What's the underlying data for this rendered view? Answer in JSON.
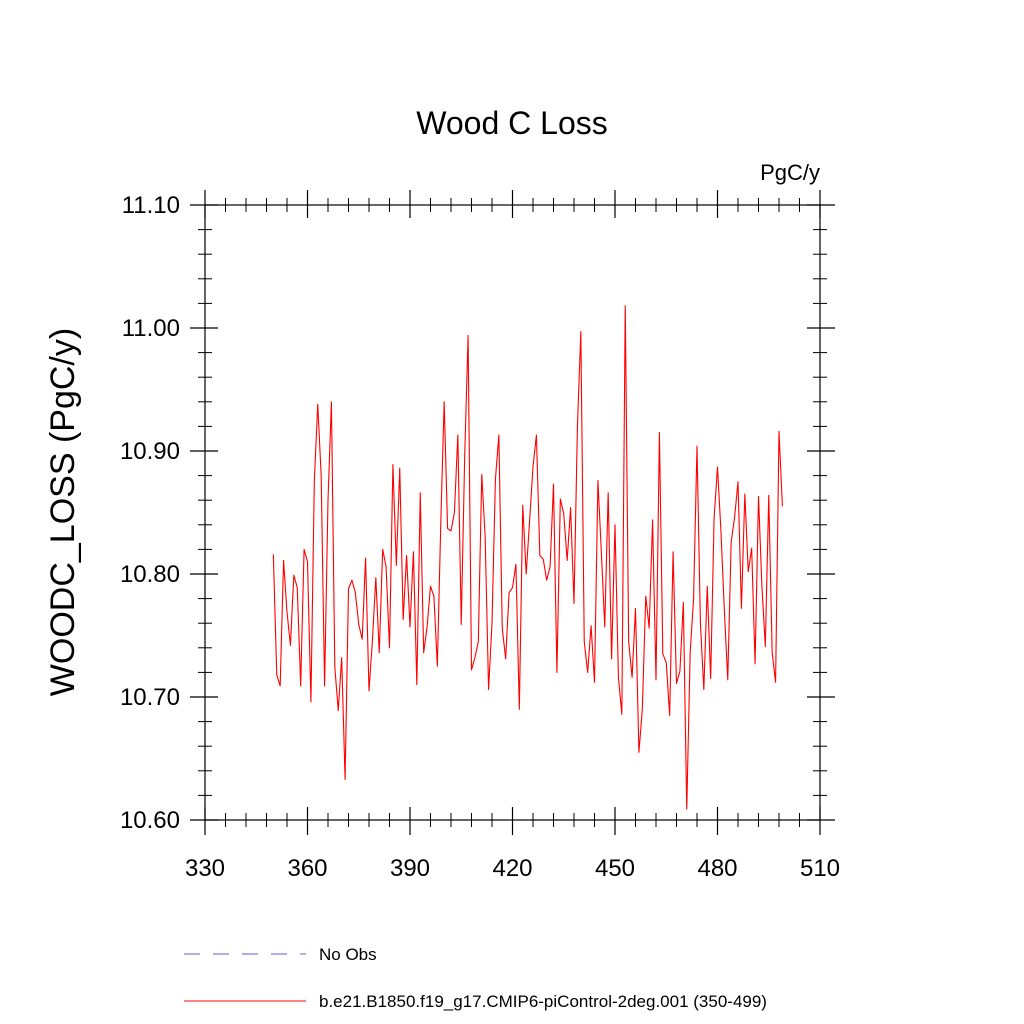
{
  "chart_data": {
    "type": "line",
    "title": "Wood C Loss",
    "units_label": "PgC/y",
    "xlabel": "",
    "ylabel": "WOODC_LOSS  (PgC/y)",
    "xlim": [
      330,
      510
    ],
    "ylim": [
      10.6,
      11.1
    ],
    "x_ticks": [
      330,
      360,
      390,
      420,
      450,
      480,
      510
    ],
    "y_ticks": [
      10.6,
      10.7,
      10.8,
      10.9,
      11.0,
      11.1
    ],
    "x_tick_labels": [
      "330",
      "360",
      "390",
      "420",
      "450",
      "480",
      "510"
    ],
    "y_tick_labels": [
      "10.60",
      "10.70",
      "10.80",
      "10.90",
      "11.00",
      "11.10"
    ],
    "grid": false,
    "legend_position": "bottom",
    "series": [
      {
        "name": "No Obs",
        "color": "#6a5acd",
        "style": "dashed",
        "x": [],
        "values": []
      },
      {
        "name": "b.e21.B1850.f19_g17.CMIP6-piControl-2deg.001 (350-499)",
        "color": "#ff0000",
        "style": "solid",
        "x_start": 350,
        "x_step": 1,
        "values": [
          10.816,
          10.718,
          10.709,
          10.811,
          10.769,
          10.742,
          10.799,
          10.789,
          10.709,
          10.82,
          10.81,
          10.696,
          10.876,
          10.938,
          10.88,
          10.709,
          10.86,
          10.94,
          10.724,
          10.689,
          10.732,
          10.633,
          10.788,
          10.795,
          10.785,
          10.759,
          10.747,
          10.813,
          10.705,
          10.746,
          10.797,
          10.736,
          10.82,
          10.806,
          10.74,
          10.889,
          10.807,
          10.886,
          10.763,
          10.815,
          10.757,
          10.818,
          10.71,
          10.866,
          10.736,
          10.757,
          10.79,
          10.782,
          10.725,
          10.84,
          10.94,
          10.837,
          10.835,
          10.85,
          10.913,
          10.759,
          10.895,
          10.994,
          10.722,
          10.732,
          10.745,
          10.881,
          10.83,
          10.706,
          10.76,
          10.877,
          10.913,
          10.756,
          10.731,
          10.785,
          10.789,
          10.808,
          10.69,
          10.856,
          10.8,
          10.843,
          10.887,
          10.913,
          10.815,
          10.812,
          10.795,
          10.806,
          10.873,
          10.72,
          10.861,
          10.849,
          10.811,
          10.854,
          10.776,
          10.92,
          10.997,
          10.745,
          10.72,
          10.758,
          10.712,
          10.876,
          10.818,
          10.757,
          10.866,
          10.731,
          10.84,
          10.716,
          10.686,
          11.018,
          10.745,
          10.716,
          10.772,
          10.655,
          10.69,
          10.782,
          10.756,
          10.844,
          10.714,
          10.915,
          10.735,
          10.728,
          10.685,
          10.818,
          10.711,
          10.721,
          10.777,
          10.609,
          10.736,
          10.78,
          10.904,
          10.76,
          10.706,
          10.79,
          10.715,
          10.845,
          10.887,
          10.835,
          10.771,
          10.714,
          10.826,
          10.846,
          10.875,
          10.772,
          10.865,
          10.802,
          10.821,
          10.727,
          10.863,
          10.79,
          10.741,
          10.864,
          10.736,
          10.712,
          10.916,
          10.855
        ]
      }
    ]
  }
}
